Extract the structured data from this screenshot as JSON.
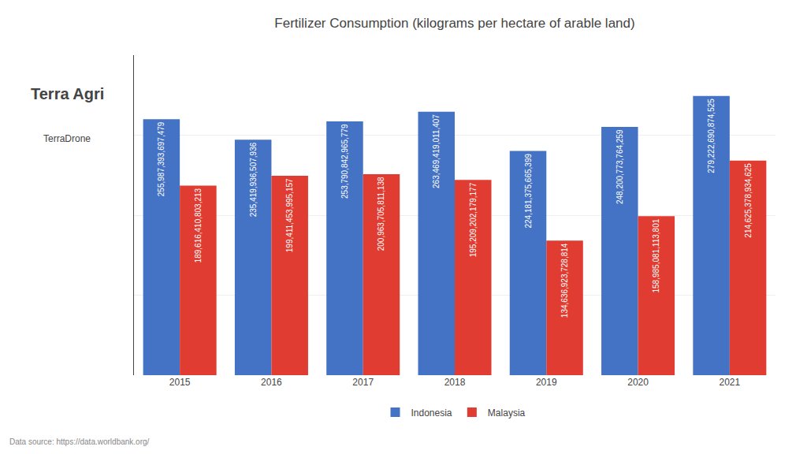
{
  "chart_data": {
    "type": "bar",
    "title": "Fertilizer Consumption (kilograms per hectare of arable land)",
    "categories": [
      "2015",
      "2016",
      "2017",
      "2018",
      "2019",
      "2020",
      "2021"
    ],
    "series": [
      {
        "name": "Indonesia",
        "color": "#4472C4",
        "values": [
          255987393697479,
          235419936507936,
          253790842965779,
          263469419011407,
          224181375665399,
          248200773764259,
          279222690874525
        ],
        "value_labels": [
          "255,987,393,697,479",
          "235,419,936,507,936",
          "253,790,842,965,779",
          "263,469,419,011,407",
          "224,181,375,665,399",
          "248,200,773,764,259",
          "279,222,690,874,525"
        ]
      },
      {
        "name": "Malaysia",
        "color": "#E03C31",
        "values": [
          189616410803213,
          199411453995157,
          200963705811138,
          195209202179177,
          134636923728814,
          158985081113801,
          214625378934625
        ],
        "value_labels": [
          "189,616,410,803,213",
          "199,411,453,995,157",
          "200,963,705,811,138",
          "195,209,202,179,177",
          "134,636,923,728,814",
          "158,985,081,113,801",
          "214,625,378,934,625"
        ]
      }
    ],
    "ylim": [
      0,
      320000000000000
    ],
    "yticks": [
      80000000000000,
      160000000000000,
      240000000000000
    ],
    "grid": true,
    "tick_labels": "x",
    "data_labels": true,
    "legend": "bottom",
    "annotations": [
      "Terra Agri",
      "TerraDrone",
      "Data source: https://data.worldbank.org/"
    ]
  }
}
